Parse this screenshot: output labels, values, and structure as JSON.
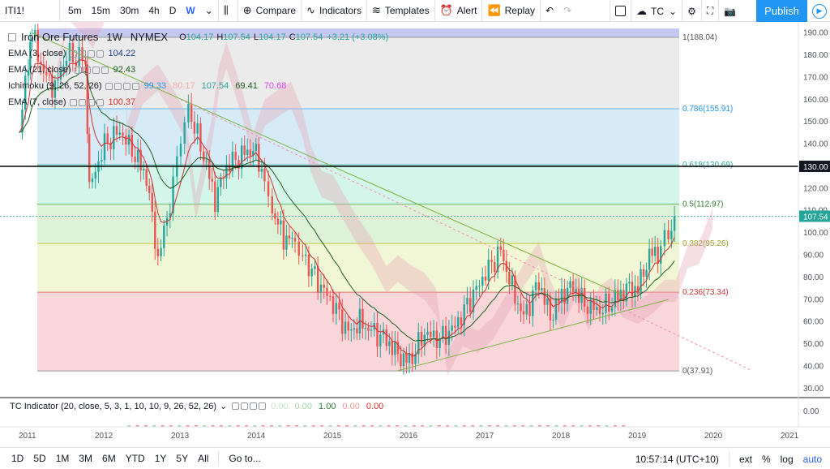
{
  "toolbar": {
    "symbol": "ITI1!",
    "intervals": [
      "5m",
      "15m",
      "30m",
      "4h",
      "D",
      "W"
    ],
    "active_interval": "W",
    "compare_label": "Compare",
    "indicators_label": "Indicators",
    "templates_label": "Templates",
    "alert_label": "Alert",
    "replay_label": "Replay",
    "tc_label": "TC",
    "publish_label": "Publish"
  },
  "legend": {
    "title": "Iron Ore Futures",
    "interval": "1W",
    "exchange": "NYMEX",
    "open_k": "O",
    "open": "104.17",
    "high_k": "H",
    "high": "107.54",
    "low_k": "L",
    "low": "104.17",
    "close_k": "C",
    "close": "107.54",
    "change": "+3.21 (+3.08%)",
    "indicators": [
      {
        "name": "EMA (3, close)",
        "values": [
          {
            "v": "104.22",
            "color": "#1e3a8a"
          }
        ]
      },
      {
        "name": "EMA (21, close)",
        "values": [
          {
            "v": "92.43",
            "color": "#1b5e20"
          }
        ]
      },
      {
        "name": "Ichimoku (9, 26, 52, 26)",
        "values": [
          {
            "v": "99.33",
            "color": "#2196f3"
          },
          {
            "v": "80.17",
            "color": "#f7a9a8"
          },
          {
            "v": "107.54",
            "color": "#26a69a"
          },
          {
            "v": "69.41",
            "color": "#1b5e20"
          },
          {
            "v": "70.68",
            "color": "#e040fb"
          }
        ]
      },
      {
        "name": "EMA (7, close)",
        "values": [
          {
            "v": "100.37",
            "color": "#d32f2f"
          }
        ]
      }
    ],
    "tc_indicator": {
      "name": "TC Indicator (20, close, 5, 3, 1, 10, 10, 9, 26, 52, 26)",
      "values": [
        {
          "v": "0.00",
          "color": "#c8e6c9"
        },
        {
          "v": "0.00",
          "color": "#a5d6a7"
        },
        {
          "v": "1.00",
          "color": "#2e7d32"
        },
        {
          "v": "0.00",
          "color": "#ef9a9a"
        },
        {
          "v": "0.00",
          "color": "#d32f2f"
        }
      ]
    }
  },
  "fib_labels": [
    {
      "text": "1(188.04)",
      "color": "#555"
    },
    {
      "text": "0.786(155.91)",
      "color": "#2196f3"
    },
    {
      "text": "0.618(130.69)",
      "color": "#26a69a"
    },
    {
      "text": "0.5(112.97)",
      "color": "#2e7d32"
    },
    {
      "text": "0.382(95.26)",
      "color": "#9e9d24"
    },
    {
      "text": "0.236(73.34)",
      "color": "#d32f2f"
    },
    {
      "text": "0(37.91)",
      "color": "#555"
    }
  ],
  "hline_label": "130.00",
  "last_price_label": "107.54",
  "y_ticks": [
    "190.00",
    "180.00",
    "170.00",
    "160.00",
    "150.00",
    "140.00",
    "130.00",
    "120.00",
    "110.00",
    "100.00",
    "90.00",
    "80.00",
    "70.00",
    "60.00",
    "50.00",
    "40.00",
    "30.00"
  ],
  "sub_y_tick": "0.00",
  "x_ticks": [
    "2011",
    "2012",
    "2013",
    "2014",
    "2015",
    "2016",
    "2017",
    "2018",
    "2019",
    "2020",
    "2021"
  ],
  "bottom": {
    "ranges": [
      "1D",
      "5D",
      "1M",
      "3M",
      "6M",
      "YTD",
      "1Y",
      "5Y",
      "All"
    ],
    "goto_label": "Go to...",
    "time": "10:57:14 (UTC+10)",
    "ext": "ext",
    "pct": "%",
    "log": "log",
    "auto": "auto"
  },
  "chart_data": {
    "type": "candlestick",
    "title": "Iron Ore Futures",
    "ylim": [
      27,
      195
    ],
    "xlim": [
      2010.85,
      2021.2
    ],
    "hline": 130,
    "fib_levels": [
      188.04,
      155.91,
      130.69,
      112.97,
      95.26,
      73.34,
      37.91
    ],
    "price_path": [
      [
        2010.88,
        145
      ],
      [
        2011.0,
        178
      ],
      [
        2011.05,
        190
      ],
      [
        2011.2,
        172
      ],
      [
        2011.35,
        165
      ],
      [
        2011.5,
        180
      ],
      [
        2011.75,
        178
      ],
      [
        2011.8,
        120
      ],
      [
        2012.0,
        140
      ],
      [
        2012.2,
        146
      ],
      [
        2012.4,
        135
      ],
      [
        2012.55,
        125
      ],
      [
        2012.7,
        88
      ],
      [
        2012.9,
        120
      ],
      [
        2013.0,
        145
      ],
      [
        2013.1,
        156
      ],
      [
        2013.3,
        135
      ],
      [
        2013.45,
        115
      ],
      [
        2013.6,
        130
      ],
      [
        2013.8,
        135
      ],
      [
        2013.95,
        138
      ],
      [
        2014.1,
        125
      ],
      [
        2014.2,
        110
      ],
      [
        2014.35,
        98
      ],
      [
        2014.5,
        96
      ],
      [
        2014.6,
        90
      ],
      [
        2014.8,
        78
      ],
      [
        2015.0,
        68
      ],
      [
        2015.2,
        55
      ],
      [
        2015.35,
        60
      ],
      [
        2015.5,
        56
      ],
      [
        2015.7,
        52
      ],
      [
        2015.85,
        45
      ],
      [
        2016.0,
        42
      ],
      [
        2016.2,
        55
      ],
      [
        2016.4,
        52
      ],
      [
        2016.6,
        58
      ],
      [
        2016.8,
        70
      ],
      [
        2017.0,
        82
      ],
      [
        2017.2,
        92
      ],
      [
        2017.35,
        75
      ],
      [
        2017.5,
        62
      ],
      [
        2017.7,
        78
      ],
      [
        2017.85,
        62
      ],
      [
        2018.0,
        72
      ],
      [
        2018.15,
        76
      ],
      [
        2018.3,
        68
      ],
      [
        2018.5,
        65
      ],
      [
        2018.7,
        70
      ],
      [
        2018.85,
        75
      ],
      [
        2019.0,
        75
      ],
      [
        2019.15,
        90
      ],
      [
        2019.3,
        92
      ],
      [
        2019.4,
        100
      ],
      [
        2019.48,
        107.54
      ]
    ],
    "trendlines": [
      {
        "from": [
          2011.05,
          190
        ],
        "to": [
          2018.8,
          72
        ],
        "color": "#7cb342"
      },
      {
        "from": [
          2015.85,
          38
        ],
        "to": [
          2019.4,
          70
        ],
        "color": "#7cb342"
      },
      {
        "from": [
          2013.0,
          160
        ],
        "to": [
          2020.5,
          38
        ],
        "color": "#f48fb1",
        "dashed": true
      }
    ]
  }
}
